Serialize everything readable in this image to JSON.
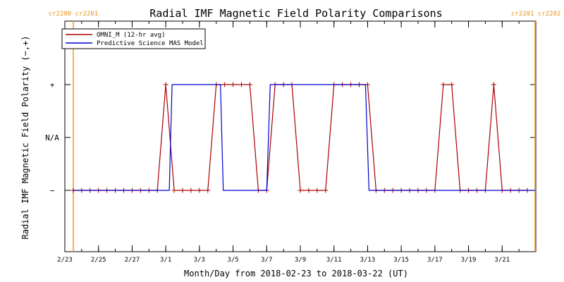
{
  "chart_data": {
    "type": "line",
    "title": "Radial IMF Magnetic Field Polarity Comparisons",
    "xlabel": "Month/Day from 2018-02-23 to 2018-03-22 (UT)",
    "ylabel": "Radial IMF Magnetic Field Polarity (−,+)",
    "x_range": [
      "2018-02-23",
      "2018-03-23"
    ],
    "y_levels": {
      "-": -1,
      "N/A": 0,
      "+": 1
    },
    "y_tick_labels": [
      "−",
      "N/A",
      "+"
    ],
    "x_tick_labels": [
      "2/23",
      "2/25",
      "2/27",
      "3/1",
      "3/3",
      "3/5",
      "3/7",
      "3/9",
      "3/11",
      "3/13",
      "3/15",
      "3/17",
      "3/19",
      "3/21"
    ],
    "x_tick_dates": [
      "2018-02-23",
      "2018-02-25",
      "2018-02-27",
      "2018-03-01",
      "2018-03-03",
      "2018-03-05",
      "2018-03-07",
      "2018-03-09",
      "2018-03-11",
      "2018-03-13",
      "2018-03-15",
      "2018-03-17",
      "2018-03-19",
      "2018-03-21"
    ],
    "carrington_markers": [
      {
        "label": "cr2200 cr2201",
        "date": "2018-02-23 12:00",
        "side": "left",
        "color": "#f4a020"
      },
      {
        "label": "cr2201 cr2202",
        "date": "2018-03-22 23:00",
        "side": "right",
        "color": "#f4a020"
      }
    ],
    "legend_position": "top-left",
    "series": [
      {
        "name": "OMNI_M (12-hr avg)",
        "color": "#aa0000",
        "markers": true,
        "points": [
          [
            "2018-02-23 12:00",
            -1
          ],
          [
            "2018-02-24 00:00",
            -1
          ],
          [
            "2018-02-24 12:00",
            -1
          ],
          [
            "2018-02-25 00:00",
            -1
          ],
          [
            "2018-02-25 12:00",
            -1
          ],
          [
            "2018-02-26 00:00",
            -1
          ],
          [
            "2018-02-26 12:00",
            -1
          ],
          [
            "2018-02-27 00:00",
            -1
          ],
          [
            "2018-02-27 12:00",
            -1
          ],
          [
            "2018-02-28 00:00",
            -1
          ],
          [
            "2018-02-28 12:00",
            -1
          ],
          [
            "2018-03-01 00:00",
            1
          ],
          [
            "2018-03-01 12:00",
            -1
          ],
          [
            "2018-03-02 00:00",
            -1
          ],
          [
            "2018-03-02 12:00",
            -1
          ],
          [
            "2018-03-03 00:00",
            -1
          ],
          [
            "2018-03-03 12:00",
            -1
          ],
          [
            "2018-03-04 00:00",
            1
          ],
          [
            "2018-03-04 12:00",
            1
          ],
          [
            "2018-03-05 00:00",
            1
          ],
          [
            "2018-03-05 12:00",
            1
          ],
          [
            "2018-03-06 00:00",
            1
          ],
          [
            "2018-03-06 12:00",
            -1
          ],
          [
            "2018-03-07 00:00",
            -1
          ],
          [
            "2018-03-07 12:00",
            1
          ],
          [
            "2018-03-08 00:00",
            1
          ],
          [
            "2018-03-08 12:00",
            1
          ],
          [
            "2018-03-09 00:00",
            -1
          ],
          [
            "2018-03-09 12:00",
            -1
          ],
          [
            "2018-03-10 00:00",
            -1
          ],
          [
            "2018-03-10 12:00",
            -1
          ],
          [
            "2018-03-11 00:00",
            1
          ],
          [
            "2018-03-11 12:00",
            1
          ],
          [
            "2018-03-12 00:00",
            1
          ],
          [
            "2018-03-12 12:00",
            1
          ],
          [
            "2018-03-13 00:00",
            1
          ],
          [
            "2018-03-13 12:00",
            -1
          ],
          [
            "2018-03-14 00:00",
            -1
          ],
          [
            "2018-03-14 12:00",
            -1
          ],
          [
            "2018-03-15 00:00",
            -1
          ],
          [
            "2018-03-15 12:00",
            -1
          ],
          [
            "2018-03-16 00:00",
            -1
          ],
          [
            "2018-03-16 12:00",
            -1
          ],
          [
            "2018-03-17 00:00",
            -1
          ],
          [
            "2018-03-17 12:00",
            1
          ],
          [
            "2018-03-18 00:00",
            1
          ],
          [
            "2018-03-18 12:00",
            -1
          ],
          [
            "2018-03-19 00:00",
            -1
          ],
          [
            "2018-03-19 12:00",
            -1
          ],
          [
            "2018-03-20 00:00",
            -1
          ],
          [
            "2018-03-20 12:00",
            1
          ],
          [
            "2018-03-21 00:00",
            -1
          ],
          [
            "2018-03-21 12:00",
            -1
          ],
          [
            "2018-03-22 00:00",
            -1
          ],
          [
            "2018-03-22 12:00",
            -1
          ]
        ]
      },
      {
        "name": "Predictive Science MAS Model",
        "color": "#0000cc",
        "markers": false,
        "points": [
          [
            "2018-02-23 12:00",
            -1
          ],
          [
            "2018-03-01 05:00",
            -1
          ],
          [
            "2018-03-01 09:00",
            1
          ],
          [
            "2018-03-04 06:00",
            1
          ],
          [
            "2018-03-04 10:00",
            -1
          ],
          [
            "2018-03-07 00:00",
            -1
          ],
          [
            "2018-03-07 05:00",
            1
          ],
          [
            "2018-03-12 21:00",
            1
          ],
          [
            "2018-03-13 02:00",
            -1
          ],
          [
            "2018-03-22 23:00",
            -1
          ]
        ]
      }
    ]
  }
}
